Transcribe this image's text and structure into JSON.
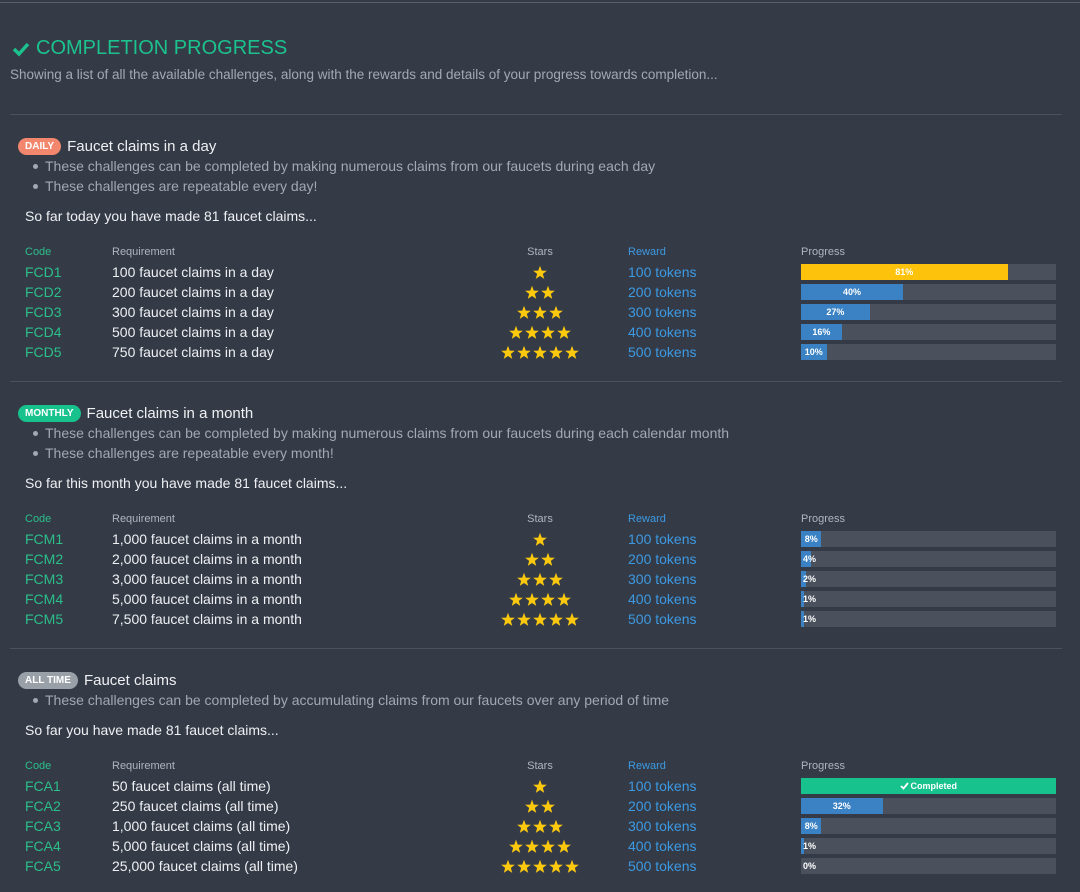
{
  "header": {
    "title": "COMPLETION PROGRESS",
    "subtitle": "Showing a list of all the available challenges, along with the rewards and details of your progress towards completion..."
  },
  "sections": [
    {
      "badge": "DAILY",
      "badge_color": "#f2876e",
      "title": "Faucet claims in a day",
      "notes": [
        "These challenges can be completed by making numerous claims from our faucets during each day",
        "These challenges are repeatable every day!"
      ],
      "summary": "So far today you have made 81 faucet claims...",
      "columns": [
        "Code",
        "Requirement",
        "Stars",
        "Reward",
        "Progress"
      ],
      "rows": [
        {
          "code": "FCD1",
          "requirement": "100 faucet claims in a day",
          "stars": 1,
          "reward": "100 tokens",
          "progress": 81,
          "progress_label": "81%",
          "bar_color": "#fcc20c"
        },
        {
          "code": "FCD2",
          "requirement": "200 faucet claims in a day",
          "stars": 2,
          "reward": "200 tokens",
          "progress": 40,
          "progress_label": "40%",
          "bar_color": "#3a82c4"
        },
        {
          "code": "FCD3",
          "requirement": "300 faucet claims in a day",
          "stars": 3,
          "reward": "300 tokens",
          "progress": 27,
          "progress_label": "27%",
          "bar_color": "#3a82c4"
        },
        {
          "code": "FCD4",
          "requirement": "500 faucet claims in a day",
          "stars": 4,
          "reward": "400 tokens",
          "progress": 16,
          "progress_label": "16%",
          "bar_color": "#3a82c4"
        },
        {
          "code": "FCD5",
          "requirement": "750 faucet claims in a day",
          "stars": 5,
          "reward": "500 tokens",
          "progress": 10,
          "progress_label": "10%",
          "bar_color": "#3a82c4"
        }
      ]
    },
    {
      "badge": "MONTHLY",
      "badge_color": "#17c28c",
      "title": "Faucet claims in a month",
      "notes": [
        "These challenges can be completed by making numerous claims from our faucets during each calendar month",
        "These challenges are repeatable every month!"
      ],
      "summary": "So far this month you have made 81 faucet claims...",
      "columns": [
        "Code",
        "Requirement",
        "Stars",
        "Reward",
        "Progress"
      ],
      "rows": [
        {
          "code": "FCM1",
          "requirement": "1,000 faucet claims in a month",
          "stars": 1,
          "reward": "100 tokens",
          "progress": 8,
          "progress_label": "8%",
          "bar_color": "#3a82c4"
        },
        {
          "code": "FCM2",
          "requirement": "2,000 faucet claims in a month",
          "stars": 2,
          "reward": "200 tokens",
          "progress": 4,
          "progress_label": "4%",
          "bar_color": "#3a82c4"
        },
        {
          "code": "FCM3",
          "requirement": "3,000 faucet claims in a month",
          "stars": 3,
          "reward": "300 tokens",
          "progress": 2,
          "progress_label": "2%",
          "bar_color": "#3a82c4"
        },
        {
          "code": "FCM4",
          "requirement": "5,000 faucet claims in a month",
          "stars": 4,
          "reward": "400 tokens",
          "progress": 1,
          "progress_label": "1%",
          "bar_color": "#3a82c4"
        },
        {
          "code": "FCM5",
          "requirement": "7,500 faucet claims in a month",
          "stars": 5,
          "reward": "500 tokens",
          "progress": 1,
          "progress_label": "1%",
          "bar_color": "#3a82c4"
        }
      ]
    },
    {
      "badge": "ALL TIME",
      "badge_color": "#9aa0a8",
      "title": "Faucet claims",
      "notes": [
        "These challenges can be completed by accumulating claims from our faucets over any period of time"
      ],
      "summary": "So far you have made 81 faucet claims...",
      "columns": [
        "Code",
        "Requirement",
        "Stars",
        "Reward",
        "Progress"
      ],
      "rows": [
        {
          "code": "FCA1",
          "requirement": "50 faucet claims (all time)",
          "stars": 1,
          "reward": "100 tokens",
          "progress": 100,
          "progress_label": "Completed",
          "bar_color": "#17c28c"
        },
        {
          "code": "FCA2",
          "requirement": "250 faucet claims (all time)",
          "stars": 2,
          "reward": "200 tokens",
          "progress": 32,
          "progress_label": "32%",
          "bar_color": "#3a82c4"
        },
        {
          "code": "FCA3",
          "requirement": "1,000 faucet claims (all time)",
          "stars": 3,
          "reward": "300 tokens",
          "progress": 8,
          "progress_label": "8%",
          "bar_color": "#3a82c4"
        },
        {
          "code": "FCA4",
          "requirement": "5,000 faucet claims (all time)",
          "stars": 4,
          "reward": "400 tokens",
          "progress": 1,
          "progress_label": "1%",
          "bar_color": "#3a82c4"
        },
        {
          "code": "FCA5",
          "requirement": "25,000 faucet claims (all time)",
          "stars": 5,
          "reward": "500 tokens",
          "progress": 0,
          "progress_label": "0%",
          "bar_color": "#3a82c4"
        }
      ]
    }
  ]
}
